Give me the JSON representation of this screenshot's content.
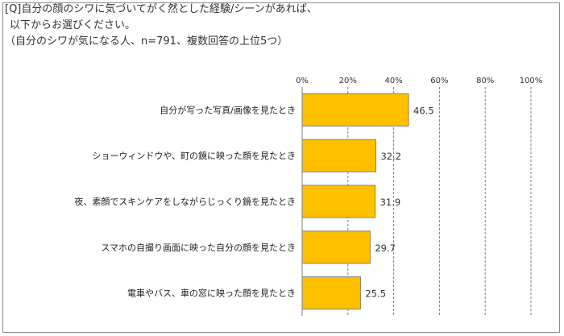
{
  "header": {
    "line1": "[Q]自分の顔のシワに気づいてがく然とした経験/シーンがあれば、",
    "line2": "以下からお選びください。",
    "line3": "（自分のシワが気になる人、n=791、複数回答の上位5つ）"
  },
  "chart_data": {
    "type": "bar",
    "orientation": "horizontal",
    "categories": [
      "自分が写った写真/画像を見たとき",
      "ショーウィンドウや、町の鏡に映った顔を見たとき",
      "夜、素顔でスキンケアをしながらじっくり鏡を見たとき",
      "スマホの自撮り画面に映った自分の顔を見たとき",
      "電車やバス、車の窓に映った顔を見たとき"
    ],
    "values": [
      46.5,
      32.2,
      31.9,
      29.7,
      25.5
    ],
    "value_labels": [
      "46.5",
      "32.2",
      "31.9",
      "29.7",
      "25.5"
    ],
    "x_ticks": [
      "0%",
      "20%",
      "40%",
      "60%",
      "80%",
      "100%"
    ],
    "xlim": [
      0,
      100
    ],
    "grid": true,
    "colors": {
      "bar": "#FFC000",
      "bar_edge": "#7F7F7F",
      "grid": "#808080",
      "axis": "#7F7F7F"
    }
  }
}
